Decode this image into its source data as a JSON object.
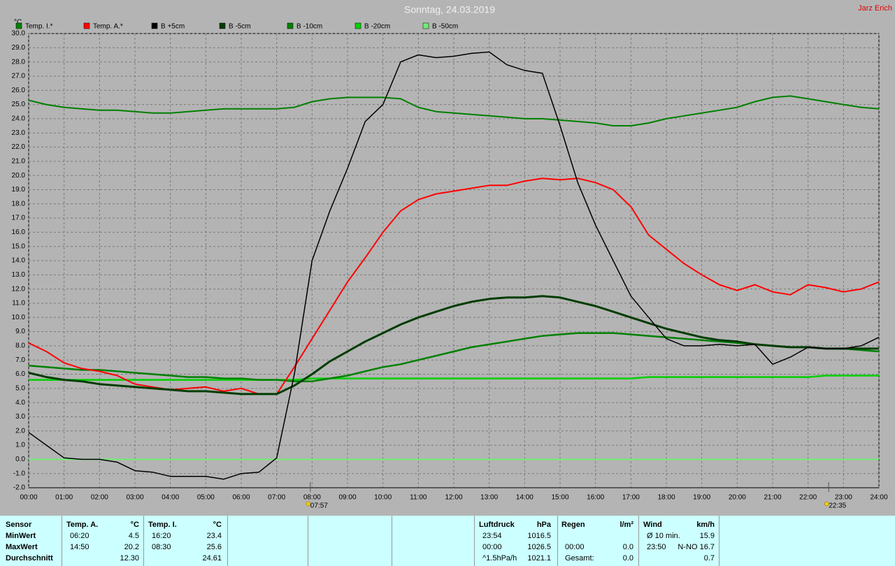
{
  "chart_data": {
    "type": "line",
    "title": "Sonntag, 24.03.2019",
    "author": "Jarz Erich",
    "ylabel": "°C",
    "x": [
      0,
      0.5,
      1,
      1.5,
      2,
      2.5,
      3,
      3.5,
      4,
      4.5,
      5,
      5.5,
      6,
      6.5,
      7,
      7.5,
      8,
      8.5,
      9,
      9.5,
      10,
      10.5,
      11,
      11.5,
      12,
      12.5,
      13,
      13.5,
      14,
      14.5,
      15,
      15.5,
      16,
      16.5,
      17,
      17.5,
      18,
      18.5,
      19,
      19.5,
      20,
      20.5,
      21,
      21.5,
      22,
      22.5,
      23,
      23.5,
      24
    ],
    "xlim": [
      0,
      24
    ],
    "xticks": [
      {
        "value": 0,
        "label": "00:00"
      },
      {
        "value": 1,
        "label": "01:00"
      },
      {
        "value": 2,
        "label": "02:00"
      },
      {
        "value": 3,
        "label": "03:00"
      },
      {
        "value": 4,
        "label": "04:00"
      },
      {
        "value": 5,
        "label": "05:00"
      },
      {
        "value": 6,
        "label": "06:00"
      },
      {
        "value": 7,
        "label": "07:00"
      },
      {
        "value": 8,
        "label": "08:00"
      },
      {
        "value": 9,
        "label": "09:00"
      },
      {
        "value": 10,
        "label": "10:00"
      },
      {
        "value": 11,
        "label": "11:00"
      },
      {
        "value": 12,
        "label": "12:00"
      },
      {
        "value": 13,
        "label": "13:00"
      },
      {
        "value": 14,
        "label": "14:00"
      },
      {
        "value": 15,
        "label": "15:00"
      },
      {
        "value": 16,
        "label": "16:00"
      },
      {
        "value": 17,
        "label": "17:00"
      },
      {
        "value": 18,
        "label": "18:00"
      },
      {
        "value": 19,
        "label": "19:00"
      },
      {
        "value": 20,
        "label": "20:00"
      },
      {
        "value": 21,
        "label": "21:00"
      },
      {
        "value": 22,
        "label": "22:00"
      },
      {
        "value": 23,
        "label": "23:00"
      },
      {
        "value": 24,
        "label": "24:00"
      }
    ],
    "ylim": [
      -2,
      30
    ],
    "yticks": [
      {
        "value": -2,
        "label": "-2.0"
      },
      {
        "value": -1,
        "label": "-1.0"
      },
      {
        "value": 0,
        "label": "0.0"
      },
      {
        "value": 1,
        "label": "1.0"
      },
      {
        "value": 2,
        "label": "2.0"
      },
      {
        "value": 3,
        "label": "3.0"
      },
      {
        "value": 4,
        "label": "4.0"
      },
      {
        "value": 5,
        "label": "5.0"
      },
      {
        "value": 6,
        "label": "6.0"
      },
      {
        "value": 7,
        "label": "7.0"
      },
      {
        "value": 8,
        "label": "8.0"
      },
      {
        "value": 9,
        "label": "9.0"
      },
      {
        "value": 10,
        "label": "10.0"
      },
      {
        "value": 11,
        "label": "11.0"
      },
      {
        "value": 12,
        "label": "12.0"
      },
      {
        "value": 13,
        "label": "13.0"
      },
      {
        "value": 14,
        "label": "14.0"
      },
      {
        "value": 15,
        "label": "15.0"
      },
      {
        "value": 16,
        "label": "16.0"
      },
      {
        "value": 17,
        "label": "17.0"
      },
      {
        "value": 18,
        "label": "18.0"
      },
      {
        "value": 19,
        "label": "19.0"
      },
      {
        "value": 20,
        "label": "20.0"
      },
      {
        "value": 21,
        "label": "21.0"
      },
      {
        "value": 22,
        "label": "22.0"
      },
      {
        "value": 23,
        "label": "23.0"
      },
      {
        "value": 24,
        "label": "24.0"
      },
      {
        "value": 25,
        "label": "25.0"
      },
      {
        "value": 26,
        "label": "26.0"
      },
      {
        "value": 27,
        "label": "27.0"
      },
      {
        "value": 28,
        "label": "28.0"
      },
      {
        "value": 29,
        "label": "29.0"
      },
      {
        "value": 30,
        "label": "30.0"
      }
    ],
    "grid": true,
    "series": [
      {
        "name": "Temp. I.*",
        "color": "#008000",
        "width": 2,
        "values": [
          25.3,
          25.0,
          24.8,
          24.7,
          24.6,
          24.6,
          24.5,
          24.4,
          24.4,
          24.5,
          24.6,
          24.7,
          24.7,
          24.7,
          24.7,
          24.8,
          25.2,
          25.4,
          25.5,
          25.5,
          25.5,
          25.4,
          24.8,
          24.5,
          24.4,
          24.3,
          24.2,
          24.1,
          24.0,
          24.0,
          23.9,
          23.8,
          23.7,
          23.5,
          23.5,
          23.7,
          24.0,
          24.2,
          24.4,
          24.6,
          24.8,
          25.2,
          25.5,
          25.6,
          25.4,
          25.2,
          25.0,
          24.8,
          24.7
        ]
      },
      {
        "name": "Temp. A.*",
        "color": "#ff0000",
        "width": 2,
        "values": [
          8.2,
          7.6,
          6.8,
          6.4,
          6.2,
          5.9,
          5.3,
          5.1,
          4.9,
          5.0,
          5.1,
          4.8,
          5.0,
          4.6,
          4.6,
          6.5,
          8.5,
          10.5,
          12.5,
          14.2,
          16.0,
          17.5,
          18.3,
          18.7,
          18.9,
          19.1,
          19.3,
          19.3,
          19.6,
          19.8,
          19.7,
          19.8,
          19.5,
          19.0,
          17.8,
          15.8,
          14.8,
          13.8,
          13.0,
          12.3,
          11.9,
          12.3,
          11.8,
          11.6,
          12.3,
          12.1,
          11.8,
          12.0,
          12.5
        ]
      },
      {
        "name": "B +5cm",
        "color": "#000000",
        "width": 1.5,
        "values": [
          1.9,
          1.0,
          0.1,
          0.0,
          0.0,
          -0.2,
          -0.8,
          -0.9,
          -1.2,
          -1.2,
          -1.2,
          -1.4,
          -1.0,
          -0.9,
          0.1,
          6.0,
          14.0,
          17.5,
          20.5,
          23.8,
          25.0,
          28.0,
          28.5,
          28.3,
          28.4,
          28.6,
          28.7,
          27.8,
          27.4,
          27.2,
          23.5,
          19.5,
          16.5,
          14.0,
          11.5,
          10.0,
          8.5,
          8.0,
          8.0,
          8.1,
          8.0,
          8.1,
          6.7,
          7.2,
          7.9,
          7.8,
          7.8,
          8.0,
          8.6
        ]
      },
      {
        "name": "B -5cm",
        "color": "#003c00",
        "width": 3,
        "values": [
          6.1,
          5.8,
          5.6,
          5.5,
          5.3,
          5.2,
          5.1,
          5.0,
          4.9,
          4.8,
          4.8,
          4.7,
          4.6,
          4.6,
          4.6,
          5.2,
          6.0,
          6.9,
          7.6,
          8.3,
          8.9,
          9.5,
          10.0,
          10.4,
          10.8,
          11.1,
          11.3,
          11.4,
          11.4,
          11.5,
          11.4,
          11.1,
          10.8,
          10.4,
          10.0,
          9.6,
          9.2,
          8.9,
          8.6,
          8.4,
          8.3,
          8.1,
          8.0,
          7.9,
          7.9,
          7.8,
          7.8,
          7.8,
          7.8
        ]
      },
      {
        "name": "B -10cm",
        "color": "#008000",
        "width": 2.5,
        "values": [
          6.6,
          6.5,
          6.4,
          6.3,
          6.3,
          6.2,
          6.1,
          6.0,
          5.9,
          5.8,
          5.8,
          5.7,
          5.7,
          5.6,
          5.6,
          5.5,
          5.5,
          5.7,
          5.9,
          6.2,
          6.5,
          6.7,
          7.0,
          7.3,
          7.6,
          7.9,
          8.1,
          8.3,
          8.5,
          8.7,
          8.8,
          8.9,
          8.9,
          8.9,
          8.8,
          8.7,
          8.6,
          8.5,
          8.4,
          8.3,
          8.2,
          8.1,
          8.0,
          7.9,
          7.9,
          7.8,
          7.8,
          7.7,
          7.6
        ]
      },
      {
        "name": "B -20cm",
        "color": "#00d000",
        "width": 2.5,
        "values": [
          5.6,
          5.6,
          5.6,
          5.6,
          5.6,
          5.6,
          5.6,
          5.6,
          5.6,
          5.6,
          5.6,
          5.6,
          5.6,
          5.6,
          5.6,
          5.6,
          5.7,
          5.7,
          5.7,
          5.7,
          5.7,
          5.7,
          5.7,
          5.7,
          5.7,
          5.7,
          5.7,
          5.7,
          5.7,
          5.7,
          5.7,
          5.7,
          5.7,
          5.7,
          5.7,
          5.8,
          5.8,
          5.8,
          5.8,
          5.8,
          5.8,
          5.8,
          5.8,
          5.8,
          5.8,
          5.9,
          5.9,
          5.9,
          5.9
        ]
      },
      {
        "name": "B -50cm",
        "color": "#70ee70",
        "width": 2,
        "values": [
          0,
          0,
          0,
          0,
          0,
          0,
          0,
          0,
          0,
          0,
          0,
          0,
          0,
          0,
          0,
          0,
          0,
          0,
          0,
          0,
          0,
          0,
          0,
          0,
          0,
          0,
          0,
          0,
          0,
          0,
          0,
          0,
          0,
          0,
          0,
          0,
          0,
          0,
          0,
          0,
          0,
          0,
          0,
          0,
          0,
          0,
          0,
          0,
          0
        ]
      }
    ],
    "annotations": [
      {
        "x": 7.95,
        "label": "07:57"
      },
      {
        "x": 22.583,
        "label": "22:35"
      }
    ]
  },
  "table": {
    "rows": [
      [
        "Sensor",
        "Temp. A.",
        "°C",
        "Temp. I.",
        "°C",
        "Luftdruck",
        "hPa",
        "Regen",
        "l/m²",
        "Wind",
        "km/h"
      ],
      [
        "MinWert",
        "06:20",
        "4.5",
        "16:20",
        "23.4",
        "23:54",
        "1016.5",
        null,
        null,
        "Ø 10 min.",
        "15.9"
      ],
      [
        "MaxWert",
        "14:50",
        "20.2",
        "08:30",
        "25.6",
        "00:00",
        "1026.5",
        "00:00",
        "0.0",
        "23:50",
        "N-NO 16.7"
      ],
      [
        "Durchschnitt",
        null,
        "12.30",
        null,
        "24.61",
        "^1.5hPa/h",
        "1021.1",
        "Gesamt:",
        "0.0",
        null,
        "0.7"
      ]
    ]
  }
}
